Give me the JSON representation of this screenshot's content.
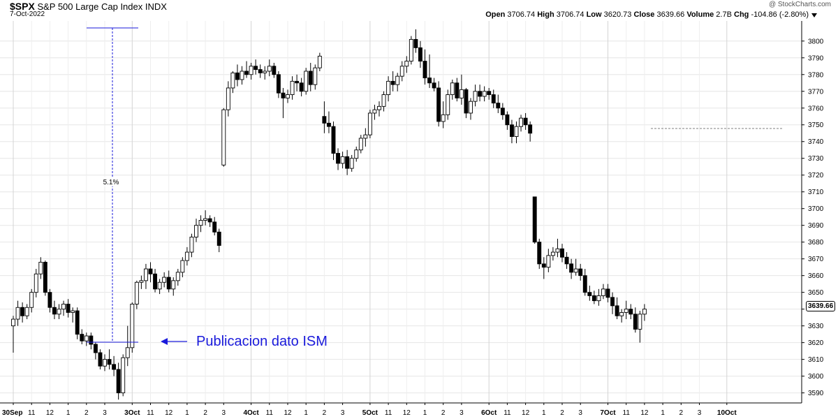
{
  "header": {
    "symbol": "$SPX",
    "name": "S&P 500 Large Cap Index",
    "exchange": "INDX",
    "date": "7-Oct-2022",
    "watermark": "@ StockCharts.com",
    "open_label": "Open",
    "open": "3706.74",
    "high_label": "High",
    "high": "3706.74",
    "low_label": "Low",
    "low": "3620.73",
    "close_label": "Close",
    "close": "3639.66",
    "volume_label": "Volume",
    "volume": "2.7B",
    "chg_label": "Chg",
    "chg": "-104.86 (-2.80%)"
  },
  "last_price_label": "3639.66",
  "colors": {
    "up_fill": "#ffffff",
    "down_fill": "#000000",
    "annotation": "#1a1adb",
    "grid": "#e6e6e6"
  },
  "chart_data": {
    "type": "candlestick",
    "ylim": [
      3584,
      3812
    ],
    "y_ticks": [
      3590,
      3600,
      3610,
      3620,
      3630,
      3640,
      3650,
      3660,
      3670,
      3680,
      3690,
      3700,
      3710,
      3720,
      3730,
      3740,
      3750,
      3760,
      3770,
      3780,
      3790,
      3800
    ],
    "x_tick_labels": [
      {
        "i": 0,
        "label": "30Sep",
        "bold": true
      },
      {
        "i": 4,
        "label": "11"
      },
      {
        "i": 8,
        "label": "12"
      },
      {
        "i": 12,
        "label": "1"
      },
      {
        "i": 16,
        "label": "2"
      },
      {
        "i": 20,
        "label": "3"
      },
      {
        "i": 26,
        "label": "3Oct",
        "bold": true
      },
      {
        "i": 30,
        "label": "11"
      },
      {
        "i": 34,
        "label": "12"
      },
      {
        "i": 38,
        "label": "1"
      },
      {
        "i": 42,
        "label": "2"
      },
      {
        "i": 46,
        "label": "3"
      },
      {
        "i": 52,
        "label": "4Oct",
        "bold": true
      },
      {
        "i": 56,
        "label": "11"
      },
      {
        "i": 60,
        "label": "12"
      },
      {
        "i": 64,
        "label": "1"
      },
      {
        "i": 68,
        "label": "2"
      },
      {
        "i": 72,
        "label": "3"
      },
      {
        "i": 78,
        "label": "5Oct",
        "bold": true
      },
      {
        "i": 82,
        "label": "11"
      },
      {
        "i": 86,
        "label": "12"
      },
      {
        "i": 90,
        "label": "1"
      },
      {
        "i": 94,
        "label": "2"
      },
      {
        "i": 98,
        "label": "3"
      },
      {
        "i": 104,
        "label": "6Oct",
        "bold": true
      },
      {
        "i": 108,
        "label": "11"
      },
      {
        "i": 112,
        "label": "12"
      },
      {
        "i": 116,
        "label": "1"
      },
      {
        "i": 120,
        "label": "2"
      },
      {
        "i": 124,
        "label": "3"
      },
      {
        "i": 130,
        "label": "7Oct",
        "bold": true
      },
      {
        "i": 134,
        "label": "11"
      },
      {
        "i": 138,
        "label": "12"
      },
      {
        "i": 142,
        "label": "1"
      },
      {
        "i": 146,
        "label": "2"
      },
      {
        "i": 150,
        "label": "3"
      },
      {
        "i": 156,
        "label": "10Oct",
        "bold": true
      }
    ],
    "candles": [
      [
        3630,
        3636,
        3614,
        3634
      ],
      [
        3634,
        3645,
        3630,
        3641
      ],
      [
        3641,
        3644,
        3632,
        3636
      ],
      [
        3636,
        3643,
        3634,
        3641
      ],
      [
        3641,
        3652,
        3638,
        3650
      ],
      [
        3650,
        3664,
        3647,
        3661
      ],
      [
        3661,
        3671,
        3658,
        3668
      ],
      [
        3668,
        3669,
        3648,
        3650
      ],
      [
        3650,
        3652,
        3638,
        3641
      ],
      [
        3641,
        3645,
        3634,
        3637
      ],
      [
        3637,
        3643,
        3634,
        3640
      ],
      [
        3640,
        3645,
        3636,
        3643
      ],
      [
        3643,
        3646,
        3635,
        3638
      ],
      [
        3638,
        3641,
        3632,
        3639
      ],
      [
        3639,
        3641,
        3622,
        3625
      ],
      [
        3625,
        3628,
        3619,
        3621
      ],
      [
        3621,
        3626,
        3618,
        3624
      ],
      [
        3624,
        3626,
        3616,
        3619
      ],
      [
        3619,
        3620,
        3610,
        3614
      ],
      [
        3614,
        3616,
        3604,
        3606
      ],
      [
        3606,
        3613,
        3603,
        3610
      ],
      [
        3610,
        3616,
        3604,
        3607
      ],
      [
        3607,
        3612,
        3600,
        3604
      ],
      [
        3604,
        3608,
        3586,
        3590
      ],
      [
        3590,
        3613,
        3588,
        3611
      ],
      [
        3611,
        3630,
        3606,
        3617
      ],
      [
        3617,
        3644,
        3614,
        3643
      ],
      [
        3643,
        3657,
        3640,
        3656
      ],
      [
        3656,
        3660,
        3652,
        3657
      ],
      [
        3657,
        3667,
        3652,
        3664
      ],
      [
        3664,
        3668,
        3656,
        3661
      ],
      [
        3661,
        3664,
        3650,
        3652
      ],
      [
        3652,
        3658,
        3649,
        3656
      ],
      [
        3656,
        3662,
        3653,
        3659
      ],
      [
        3659,
        3663,
        3650,
        3652
      ],
      [
        3652,
        3659,
        3648,
        3657
      ],
      [
        3657,
        3664,
        3654,
        3662
      ],
      [
        3662,
        3671,
        3659,
        3669
      ],
      [
        3669,
        3677,
        3666,
        3674
      ],
      [
        3674,
        3685,
        3671,
        3683
      ],
      [
        3683,
        3694,
        3680,
        3690
      ],
      [
        3690,
        3696,
        3686,
        3693
      ],
      [
        3693,
        3699,
        3690,
        3694
      ],
      [
        3694,
        3696,
        3689,
        3692
      ],
      [
        3692,
        3695,
        3684,
        3686
      ],
      [
        3686,
        3688,
        3674,
        3678
      ],
      [
        3726,
        3760,
        3725,
        3759
      ],
      [
        3759,
        3776,
        3755,
        3772
      ],
      [
        3772,
        3782,
        3769,
        3781
      ],
      [
        3781,
        3786,
        3773,
        3777
      ],
      [
        3777,
        3785,
        3774,
        3782
      ],
      [
        3782,
        3788,
        3778,
        3780
      ],
      [
        3780,
        3787,
        3777,
        3785
      ],
      [
        3785,
        3789,
        3780,
        3783
      ],
      [
        3783,
        3786,
        3778,
        3781
      ],
      [
        3781,
        3785,
        3777,
        3782
      ],
      [
        3782,
        3789,
        3779,
        3785
      ],
      [
        3785,
        3787,
        3778,
        3780
      ],
      [
        3780,
        3782,
        3766,
        3769
      ],
      [
        3769,
        3772,
        3754,
        3766
      ],
      [
        3766,
        3771,
        3763,
        3768
      ],
      [
        3768,
        3779,
        3765,
        3776
      ],
      [
        3776,
        3780,
        3770,
        3775
      ],
      [
        3775,
        3778,
        3767,
        3770
      ],
      [
        3770,
        3784,
        3768,
        3782
      ],
      [
        3782,
        3787,
        3770,
        3774
      ],
      [
        3774,
        3786,
        3771,
        3784
      ],
      [
        3784,
        3793,
        3782,
        3791
      ],
      [
        3755,
        3764,
        3745,
        3751
      ],
      [
        3751,
        3758,
        3745,
        3749
      ],
      [
        3749,
        3752,
        3729,
        3733
      ],
      [
        3733,
        3736,
        3723,
        3727
      ],
      [
        3727,
        3734,
        3724,
        3731
      ],
      [
        3731,
        3735,
        3720,
        3724
      ],
      [
        3724,
        3732,
        3722,
        3730
      ],
      [
        3730,
        3737,
        3728,
        3735
      ],
      [
        3735,
        3744,
        3733,
        3742
      ],
      [
        3742,
        3748,
        3737,
        3744
      ],
      [
        3744,
        3759,
        3742,
        3757
      ],
      [
        3757,
        3762,
        3753,
        3759
      ],
      [
        3759,
        3764,
        3755,
        3761
      ],
      [
        3761,
        3770,
        3758,
        3768
      ],
      [
        3768,
        3779,
        3764,
        3776
      ],
      [
        3776,
        3782,
        3770,
        3774
      ],
      [
        3774,
        3781,
        3770,
        3779
      ],
      [
        3779,
        3788,
        3776,
        3785
      ],
      [
        3785,
        3791,
        3781,
        3788
      ],
      [
        3788,
        3803,
        3786,
        3801
      ],
      [
        3801,
        3807,
        3793,
        3796
      ],
      [
        3796,
        3800,
        3784,
        3788
      ],
      [
        3788,
        3795,
        3774,
        3778
      ],
      [
        3778,
        3792,
        3772,
        3775
      ],
      [
        3775,
        3778,
        3770,
        3772
      ],
      [
        3772,
        3776,
        3749,
        3752
      ],
      [
        3752,
        3764,
        3748,
        3756
      ],
      [
        3756,
        3771,
        3753,
        3768
      ],
      [
        3768,
        3777,
        3765,
        3775
      ],
      [
        3775,
        3778,
        3764,
        3766
      ],
      [
        3766,
        3780,
        3762,
        3771
      ],
      [
        3771,
        3772,
        3754,
        3757
      ],
      [
        3757,
        3766,
        3753,
        3764
      ],
      [
        3764,
        3774,
        3761,
        3770
      ],
      [
        3770,
        3774,
        3764,
        3767
      ],
      [
        3767,
        3773,
        3764,
        3770
      ],
      [
        3770,
        3772,
        3765,
        3768
      ],
      [
        3768,
        3771,
        3760,
        3763
      ],
      [
        3763,
        3768,
        3757,
        3760
      ],
      [
        3760,
        3763,
        3753,
        3756
      ],
      [
        3756,
        3758,
        3747,
        3750
      ],
      [
        3750,
        3753,
        3739,
        3743
      ],
      [
        3743,
        3752,
        3739,
        3749
      ],
      [
        3749,
        3756,
        3746,
        3754
      ],
      [
        3754,
        3757,
        3747,
        3750
      ],
      [
        3750,
        3752,
        3740,
        3745
      ],
      [
        3707,
        3707,
        3679,
        3680
      ],
      [
        3680,
        3682,
        3664,
        3667
      ],
      [
        3667,
        3671,
        3658,
        3665
      ],
      [
        3665,
        3676,
        3662,
        3672
      ],
      [
        3672,
        3677,
        3669,
        3674
      ],
      [
        3674,
        3682,
        3671,
        3676
      ],
      [
        3676,
        3679,
        3668,
        3671
      ],
      [
        3671,
        3674,
        3664,
        3667
      ],
      [
        3667,
        3670,
        3658,
        3662
      ],
      [
        3662,
        3670,
        3660,
        3664
      ],
      [
        3664,
        3667,
        3657,
        3660
      ],
      [
        3660,
        3664,
        3648,
        3650
      ],
      [
        3650,
        3654,
        3645,
        3648
      ],
      [
        3648,
        3651,
        3643,
        3645
      ],
      [
        3645,
        3652,
        3642,
        3648
      ],
      [
        3648,
        3655,
        3646,
        3652
      ],
      [
        3652,
        3655,
        3644,
        3647
      ],
      [
        3647,
        3650,
        3637,
        3642
      ],
      [
        3642,
        3647,
        3634,
        3636
      ],
      [
        3636,
        3640,
        3632,
        3638
      ],
      [
        3638,
        3645,
        3634,
        3640
      ],
      [
        3640,
        3643,
        3634,
        3637
      ],
      [
        3637,
        3641,
        3626,
        3628
      ],
      [
        3628,
        3639,
        3620,
        3637
      ],
      [
        3637,
        3643,
        3633,
        3640
      ]
    ],
    "measure_label": "5.1%",
    "annotation": "Publicacion dato ISM"
  }
}
